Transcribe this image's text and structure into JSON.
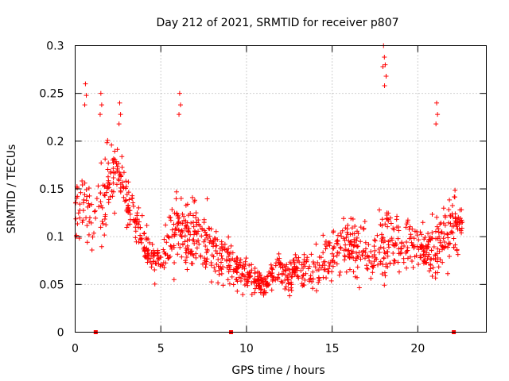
{
  "chart_data": {
    "type": "scatter",
    "title": "Day 212 of 2021, SRMTID for receiver p807",
    "xlabel": "GPS time / hours",
    "ylabel": "SRMTID / TECUs",
    "xlim": [
      0,
      24
    ],
    "ylim": [
      0,
      0.3
    ],
    "xticks": [
      0,
      5,
      10,
      15,
      20
    ],
    "xtick_labels": [
      "0",
      "5",
      "10",
      "15",
      "20"
    ],
    "yticks": [
      0,
      0.05,
      0.1,
      0.15,
      0.2,
      0.25,
      0.3
    ],
    "ytick_labels": [
      "0",
      "0.05",
      "0.1",
      "0.15",
      "0.2",
      "0.25",
      "0.3"
    ],
    "grid": true,
    "marker": "plus",
    "color": "#ff0000",
    "baseline_markers_x": [
      1.2,
      9.1,
      22.1
    ],
    "x_range_of_data": [
      0,
      22.6
    ],
    "envelope_x": [
      0,
      0.5,
      1,
      1.5,
      2,
      2.5,
      3,
      3.5,
      4,
      4.5,
      5,
      5.5,
      6,
      6.5,
      7,
      7.5,
      8,
      8.5,
      9,
      9.5,
      10,
      10.5,
      11,
      11.5,
      12,
      12.5,
      13,
      13.5,
      14,
      14.5,
      15,
      15.5,
      16,
      16.5,
      17,
      17.5,
      18,
      18.5,
      19,
      19.5,
      20,
      20.5,
      21,
      21.5,
      22,
      22.5
    ],
    "envelope_center": [
      0.13,
      0.14,
      0.12,
      0.13,
      0.16,
      0.17,
      0.14,
      0.12,
      0.09,
      0.08,
      0.07,
      0.1,
      0.11,
      0.1,
      0.1,
      0.1,
      0.09,
      0.08,
      0.07,
      0.06,
      0.06,
      0.055,
      0.05,
      0.06,
      0.065,
      0.06,
      0.07,
      0.06,
      0.065,
      0.075,
      0.08,
      0.09,
      0.09,
      0.09,
      0.085,
      0.08,
      0.1,
      0.1,
      0.09,
      0.09,
      0.09,
      0.085,
      0.08,
      0.1,
      0.11,
      0.11
    ],
    "envelope_spread": [
      0.06,
      0.07,
      0.05,
      0.07,
      0.06,
      0.05,
      0.04,
      0.035,
      0.03,
      0.025,
      0.03,
      0.05,
      0.06,
      0.05,
      0.05,
      0.05,
      0.04,
      0.035,
      0.03,
      0.025,
      0.025,
      0.02,
      0.02,
      0.02,
      0.03,
      0.025,
      0.025,
      0.03,
      0.03,
      0.035,
      0.04,
      0.05,
      0.045,
      0.04,
      0.04,
      0.035,
      0.07,
      0.06,
      0.04,
      0.035,
      0.035,
      0.035,
      0.05,
      0.05,
      0.05,
      0.04
    ],
    "notable_peaks": [
      {
        "x": 0.6,
        "y": 0.26
      },
      {
        "x": 1.5,
        "y": 0.25
      },
      {
        "x": 2.6,
        "y": 0.24
      },
      {
        "x": 6.1,
        "y": 0.25
      },
      {
        "x": 18.0,
        "y": 0.3
      },
      {
        "x": 18.1,
        "y": 0.28
      },
      {
        "x": 21.1,
        "y": 0.24
      }
    ],
    "point_count": 1200,
    "random_seed": 807
  }
}
